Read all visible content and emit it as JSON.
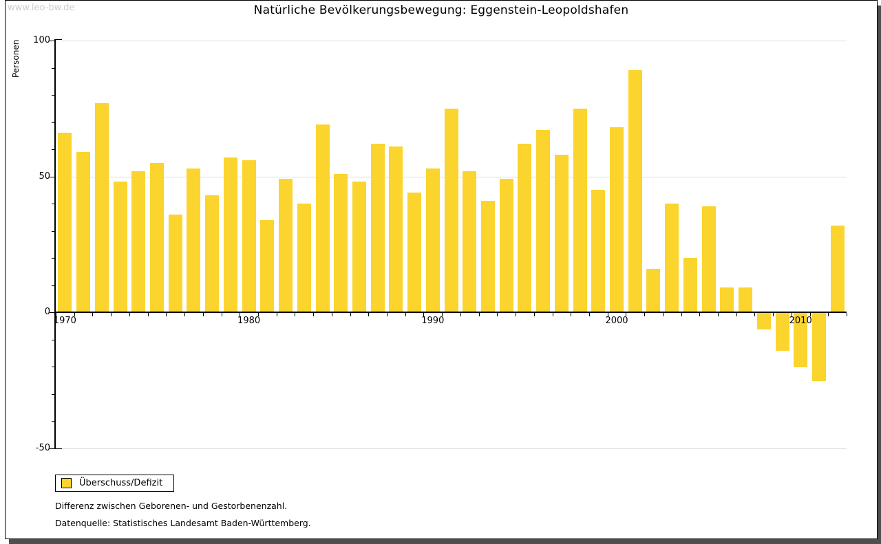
{
  "watermark": "www.leo-bw.de",
  "title": "Natürliche Bevölkerungsbewegung: Eggenstein-Leopoldshafen",
  "y_axis_label": "Personen",
  "legend": {
    "label": "Überschuss/Defizit"
  },
  "footnotes": [
    "Differenz zwischen Geborenen- und Gestorbenenzahl.",
    "Datenquelle: Statistisches Landesamt Baden-Württemberg."
  ],
  "colors": {
    "bar": "#FBD42D",
    "grid": "#DCDCDC",
    "axis": "#000000",
    "watermark_text": "#CCCCCC",
    "frame_shadow": "#4F4F4F"
  },
  "chart_data": {
    "type": "bar",
    "title": "Natürliche Bevölkerungsbewegung: Eggenstein-Leopoldshafen",
    "xlabel": "",
    "ylabel": "Personen",
    "ylim": [
      -50,
      100
    ],
    "y_major_ticks": [
      100,
      50,
      0,
      -50
    ],
    "y_minor_ticks": [
      90,
      80,
      70,
      60,
      40,
      30,
      20,
      10,
      -10,
      -20,
      -30,
      -40
    ],
    "x_labeled_years": [
      1970,
      1980,
      1990,
      2000,
      2010
    ],
    "grid": "horizontal gridlines at 100, 50 and -50; zero line is the black x-axis",
    "legend_position": "bottom-left outside plot",
    "series": [
      {
        "name": "Überschuss/Defizit",
        "years": [
          1970,
          1971,
          1972,
          1973,
          1974,
          1975,
          1976,
          1977,
          1978,
          1979,
          1980,
          1981,
          1982,
          1983,
          1984,
          1985,
          1986,
          1987,
          1988,
          1989,
          1990,
          1991,
          1992,
          1993,
          1994,
          1995,
          1996,
          1997,
          1998,
          1999,
          2000,
          2001,
          2002,
          2003,
          2004,
          2005,
          2006,
          2007,
          2008,
          2009,
          2010,
          2011,
          2012
        ],
        "values": [
          66,
          59,
          77,
          48,
          52,
          55,
          36,
          53,
          43,
          57,
          56,
          34,
          49,
          40,
          69,
          51,
          48,
          62,
          61,
          44,
          53,
          75,
          52,
          41,
          49,
          62,
          67,
          58,
          75,
          45,
          68,
          89,
          16,
          40,
          20,
          39,
          9,
          9,
          -6,
          -14,
          -20,
          -25,
          32
        ]
      }
    ]
  }
}
